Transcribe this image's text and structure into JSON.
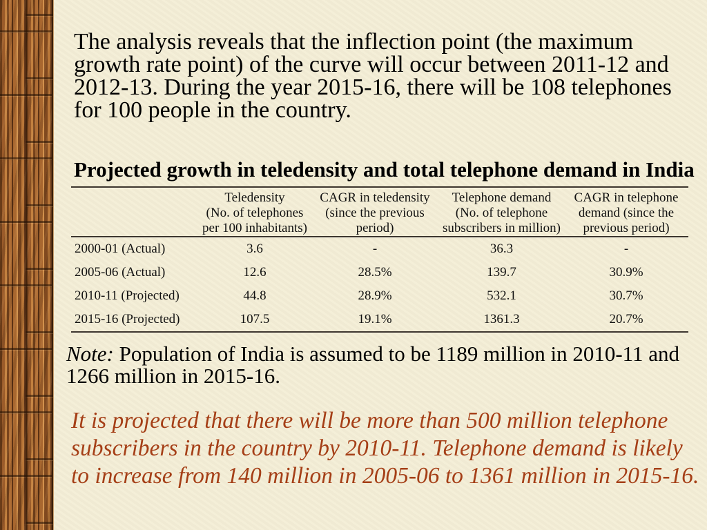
{
  "colors": {
    "background": "#f4eed6",
    "wood_border": "#8a5026",
    "conclusion_text": "#a53f17",
    "rules": "#3b342c"
  },
  "slide": {
    "intro_lines": [
      "The analysis reveals that the inflection point (the maximum",
      "growth rate point) of the curve will occur between 2011-12 and",
      "2012-13. During the year 2015-16, there will be 108 telephones",
      "for 100 people in the country."
    ],
    "table_title": "Projected growth in teledensity and total telephone demand in India",
    "note": {
      "label": "Note:",
      "lines": [
        "Population of India is assumed to be 1189 million in 2010-11 and",
        "1266 million in 2015-16."
      ]
    },
    "conclusion_lines": [
      "It is projected that there will be more than 500 million telephone",
      "subscribers in the country by 2010-11. Telephone demand is likely",
      "to increase from 140 million in 2005-06 to 1361 million in 2015-16."
    ]
  },
  "table": {
    "column_headers": [
      {
        "lines": [
          "Teledensity",
          "(No. of telephones",
          "per 100 inhabitants)"
        ]
      },
      {
        "lines": [
          "CAGR in teledensity",
          "(since the previous",
          "period)"
        ]
      },
      {
        "lines": [
          "Telephone demand",
          "(No. of telephone",
          "subscribers in million)"
        ]
      },
      {
        "lines": [
          "CAGR in telephone",
          "demand (since the",
          "previous period)"
        ]
      }
    ],
    "rows": [
      [
        "2000-01 (Actual)",
        "3.6",
        "-",
        "36.3",
        "-"
      ],
      [
        "2005-06 (Actual)",
        "12.6",
        "28.5%",
        "139.7",
        "30.9%"
      ],
      [
        "2010-11 (Projected)",
        "44.8",
        "28.9%",
        "532.1",
        "30.7%"
      ],
      [
        "2015-16 (Projected)",
        "107.5",
        "19.1%",
        "1361.3",
        "20.7%"
      ]
    ]
  }
}
